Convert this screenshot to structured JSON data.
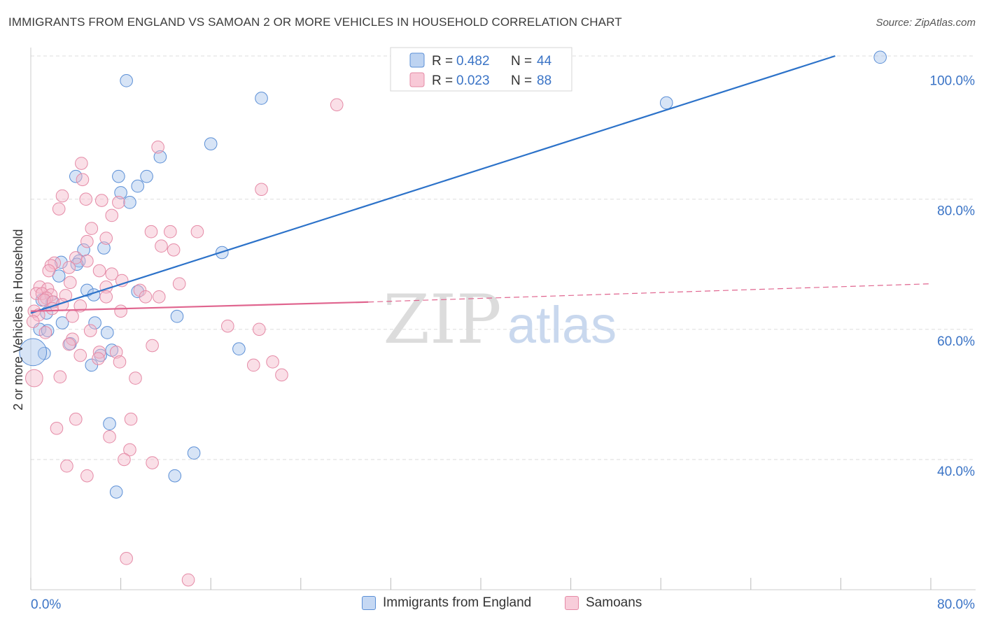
{
  "header": {
    "title": "IMMIGRANTS FROM ENGLAND VS SAMOAN 2 OR MORE VEHICLES IN HOUSEHOLD CORRELATION CHART",
    "source": "Source: ZipAtlas.com"
  },
  "watermark": {
    "zip": "ZIP",
    "atlas": "atlas"
  },
  "colors": {
    "blue_fill": "#a7c4ec",
    "blue_stroke": "#5b8fd6",
    "blue_line": "#2c72c9",
    "pink_fill": "#f5b7ca",
    "pink_stroke": "#e58aa6",
    "pink_line": "#e0658f",
    "value_text": "#3b74c6",
    "grid": "#dddddd"
  },
  "legend": {
    "rows": [
      {
        "r_label": "R = ",
        "r_value": "0.482",
        "n_label": "N = ",
        "n_value": "44"
      },
      {
        "r_label": "R = ",
        "r_value": "0.023",
        "n_label": "N = ",
        "n_value": "88"
      }
    ]
  },
  "chart_data": {
    "type": "scatter",
    "title": "IMMIGRANTS FROM ENGLAND VS SAMOAN 2 OR MORE VEHICLES IN HOUSEHOLD CORRELATION CHART",
    "xlabel": "",
    "ylabel": "2 or more Vehicles in Household",
    "xlim": [
      0,
      80
    ],
    "ylim": [
      20,
      102
    ],
    "x_ticks": [
      0,
      8,
      16,
      24,
      32,
      40,
      48,
      56,
      64,
      72,
      80
    ],
    "x_tick_labels": [
      {
        "value": 0,
        "label": "0.0%"
      },
      {
        "value": 80,
        "label": "80.0%"
      }
    ],
    "y_tick_labels": [
      {
        "value": 100,
        "label": "100.0%"
      },
      {
        "value": 80,
        "label": "80.0%"
      },
      {
        "value": 60,
        "label": "60.0%"
      },
      {
        "value": 40,
        "label": "40.0%"
      }
    ],
    "y_gridlines": [
      102,
      80,
      60,
      40
    ],
    "legend_position": "top-center",
    "series": [
      {
        "name": "Immigrants from England",
        "color": "blue",
        "r": 0.482,
        "n": 44,
        "trend": {
          "x0": 0,
          "y0": 62.5,
          "x1": 71.5,
          "y1": 102,
          "dashed_to": null
        },
        "points": [
          [
            8.5,
            98.2,
            10
          ],
          [
            20.5,
            95.5,
            10
          ],
          [
            75.5,
            101.8,
            10
          ],
          [
            56.5,
            94.8,
            10
          ],
          [
            16,
            88.5,
            10
          ],
          [
            11.5,
            86.5,
            10
          ],
          [
            4,
            83.5,
            10
          ],
          [
            7.8,
            83.5,
            10
          ],
          [
            10.3,
            83.5,
            10
          ],
          [
            9.5,
            82,
            10
          ],
          [
            8,
            81,
            10
          ],
          [
            8.8,
            79.5,
            10
          ],
          [
            6.5,
            72.5,
            10
          ],
          [
            4.7,
            72.2,
            10
          ],
          [
            17,
            71.8,
            10
          ],
          [
            2.7,
            70.3,
            10
          ],
          [
            4.3,
            70.5,
            10
          ],
          [
            4.1,
            70,
            10
          ],
          [
            2.5,
            68.2,
            10
          ],
          [
            5,
            66,
            10
          ],
          [
            9.5,
            65.8,
            10
          ],
          [
            5.6,
            65.3,
            10
          ],
          [
            1,
            64.5,
            10
          ],
          [
            1.9,
            64.2,
            10
          ],
          [
            1.4,
            62.5,
            10
          ],
          [
            13,
            62,
            10
          ],
          [
            5.7,
            61,
            10
          ],
          [
            2.8,
            61,
            10
          ],
          [
            6.8,
            59.5,
            10
          ],
          [
            0.8,
            60,
            10
          ],
          [
            1.5,
            59.8,
            10
          ],
          [
            3.5,
            57.8,
            10
          ],
          [
            18.5,
            57,
            10
          ],
          [
            7.2,
            56.8,
            10
          ],
          [
            6.2,
            56,
            10
          ],
          [
            1.2,
            56.3,
            10
          ],
          [
            0.2,
            56.5,
            22
          ],
          [
            5.4,
            54.5,
            10
          ],
          [
            7,
            45.5,
            10
          ],
          [
            14.5,
            41,
            10
          ],
          [
            12.8,
            37.5,
            10
          ],
          [
            7.6,
            35,
            10
          ]
        ]
      },
      {
        "name": "Samoans",
        "color": "pink",
        "r": 0.023,
        "n": 88,
        "trend": {
          "x0": 0,
          "y0": 62.8,
          "x1": 30,
          "y1": 64.2,
          "dashed_to": {
            "x": 80,
            "y": 67
          }
        },
        "points": [
          [
            27.2,
            94.5,
            10
          ],
          [
            11.3,
            88,
            10
          ],
          [
            4.5,
            85.5,
            10
          ],
          [
            4.6,
            83,
            10
          ],
          [
            20.5,
            81.5,
            10
          ],
          [
            2.8,
            80.5,
            10
          ],
          [
            4.9,
            80,
            10
          ],
          [
            6.3,
            79.8,
            10
          ],
          [
            7.8,
            79.5,
            10
          ],
          [
            2.5,
            78.5,
            10
          ],
          [
            7.2,
            77.5,
            10
          ],
          [
            5.4,
            75.5,
            10
          ],
          [
            10.7,
            75,
            10
          ],
          [
            12.4,
            75,
            10
          ],
          [
            14.8,
            75,
            10
          ],
          [
            6.7,
            74,
            10
          ],
          [
            5,
            73.5,
            10
          ],
          [
            11.6,
            72.8,
            10
          ],
          [
            12.7,
            72.2,
            10
          ],
          [
            4,
            71,
            10
          ],
          [
            5,
            70.5,
            10
          ],
          [
            2.1,
            70.2,
            10
          ],
          [
            1.8,
            69.8,
            10
          ],
          [
            3.4,
            69.5,
            10
          ],
          [
            1.6,
            69,
            10
          ],
          [
            6.1,
            69,
            10
          ],
          [
            7.2,
            68.5,
            10
          ],
          [
            8.1,
            67.5,
            10
          ],
          [
            3.5,
            67.2,
            10
          ],
          [
            13.2,
            67,
            10
          ],
          [
            0.8,
            66.5,
            10
          ],
          [
            1.5,
            66.2,
            10
          ],
          [
            6.7,
            66.5,
            10
          ],
          [
            9.7,
            66,
            10
          ],
          [
            0.5,
            65.5,
            10
          ],
          [
            1,
            65.5,
            10
          ],
          [
            1.8,
            65.3,
            10
          ],
          [
            3.1,
            65.2,
            10
          ],
          [
            6.7,
            65,
            10
          ],
          [
            10.2,
            65,
            10
          ],
          [
            11.4,
            65,
            10
          ],
          [
            1.4,
            64.8,
            10
          ],
          [
            1.2,
            64.5,
            10
          ],
          [
            2,
            64.2,
            10
          ],
          [
            2.8,
            63.8,
            10
          ],
          [
            4.4,
            63.6,
            10
          ],
          [
            1.9,
            63.2,
            10
          ],
          [
            0.3,
            62.8,
            10
          ],
          [
            8,
            62.8,
            10
          ],
          [
            0.7,
            62.2,
            10
          ],
          [
            3.7,
            62,
            10
          ],
          [
            0.2,
            61.2,
            10
          ],
          [
            17.5,
            60.5,
            10
          ],
          [
            20.3,
            60,
            10
          ],
          [
            5.3,
            59.8,
            10
          ],
          [
            1.3,
            59.5,
            10
          ],
          [
            3.7,
            58.5,
            10
          ],
          [
            10.8,
            57.5,
            10
          ],
          [
            3.4,
            57.7,
            10
          ],
          [
            6.1,
            56.5,
            10
          ],
          [
            7.6,
            56.5,
            10
          ],
          [
            4.4,
            56,
            10
          ],
          [
            6,
            55.5,
            10
          ],
          [
            7.9,
            55,
            10
          ],
          [
            21.5,
            55,
            10
          ],
          [
            19.8,
            54.5,
            10
          ],
          [
            0.3,
            52.5,
            14
          ],
          [
            2.6,
            52.7,
            10
          ],
          [
            9.3,
            52.5,
            10
          ],
          [
            22.3,
            53,
            10
          ],
          [
            4,
            46.2,
            10
          ],
          [
            8.9,
            46.2,
            10
          ],
          [
            2.3,
            44.8,
            10
          ],
          [
            7,
            43.5,
            10
          ],
          [
            8.8,
            41.5,
            10
          ],
          [
            8.3,
            40,
            10
          ],
          [
            10.8,
            39.5,
            10
          ],
          [
            3.2,
            39,
            10
          ],
          [
            5,
            37.5,
            10
          ],
          [
            8.5,
            24.8,
            10
          ],
          [
            14,
            21.5,
            10
          ]
        ]
      }
    ]
  },
  "bottom_legend": {
    "items": [
      {
        "label": "Immigrants from England"
      },
      {
        "label": "Samoans"
      }
    ]
  }
}
